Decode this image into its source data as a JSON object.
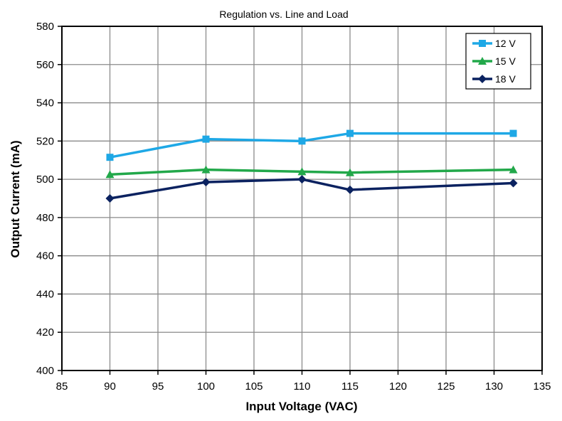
{
  "chart_data": {
    "type": "line",
    "title": "Regulation vs. Line and Load",
    "xlabel": "Input Voltage (VAC)",
    "ylabel": "Output Current (mA)",
    "xlim": [
      85,
      135
    ],
    "ylim": [
      400,
      580
    ],
    "x_ticks": [
      85,
      90,
      95,
      100,
      105,
      110,
      115,
      120,
      125,
      130,
      135
    ],
    "y_ticks": [
      400,
      420,
      440,
      460,
      480,
      500,
      520,
      540,
      560,
      580
    ],
    "x_tick_labels": [
      "85",
      "90",
      "95",
      "100",
      "105",
      "110",
      "115",
      "120",
      "125",
      "130",
      "135"
    ],
    "y_tick_labels": [
      "400",
      "420",
      "440",
      "460",
      "480",
      "500",
      "520",
      "540",
      "560",
      "580"
    ],
    "grid": true,
    "legend_position": "top-right",
    "x": [
      90,
      100,
      110,
      115,
      132
    ],
    "series": [
      {
        "name": "12 V",
        "color": "#1EA8E6",
        "marker": "square",
        "values": [
          511.5,
          521,
          520,
          524,
          524
        ]
      },
      {
        "name": "15 V",
        "color": "#22A84A",
        "marker": "triangle",
        "values": [
          502.5,
          505,
          504,
          503.5,
          505
        ]
      },
      {
        "name": "18 V",
        "color": "#0B2260",
        "marker": "diamond",
        "values": [
          490,
          498.5,
          500,
          494.5,
          498
        ]
      }
    ]
  }
}
